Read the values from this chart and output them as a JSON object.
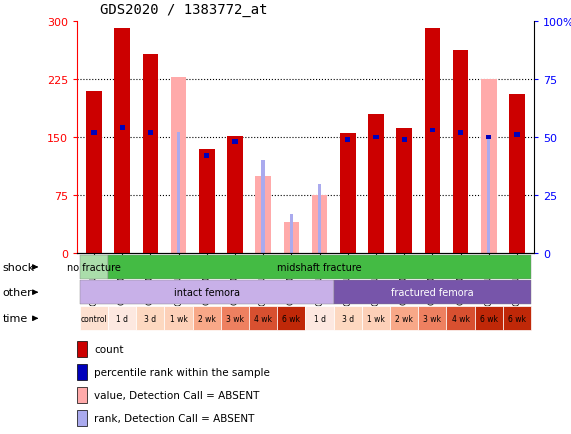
{
  "title": "GDS2020 / 1383772_at",
  "samples": [
    "GSM74213",
    "GSM74214",
    "GSM74215",
    "GSM74217",
    "GSM74219",
    "GSM74221",
    "GSM74223",
    "GSM74225",
    "GSM74227",
    "GSM74216",
    "GSM74218",
    "GSM74220",
    "GSM74222",
    "GSM74224",
    "GSM74226",
    "GSM74228"
  ],
  "count_values": [
    210,
    291,
    257,
    0,
    135,
    152,
    0,
    0,
    0,
    155,
    180,
    162,
    291,
    262,
    0,
    205
  ],
  "rank_pct": [
    52,
    54,
    52,
    0,
    42,
    48,
    0,
    0,
    0,
    49,
    50,
    49,
    53,
    52,
    50,
    51
  ],
  "absent_count_values": [
    0,
    0,
    0,
    228,
    0,
    0,
    100,
    40,
    75,
    0,
    0,
    0,
    0,
    0,
    225,
    0
  ],
  "absent_rank_pct": [
    0,
    0,
    0,
    52,
    0,
    0,
    40,
    17,
    30,
    0,
    0,
    0,
    0,
    0,
    51,
    0
  ],
  "ylim": [
    0,
    300
  ],
  "yticks_left": [
    0,
    75,
    150,
    225,
    300
  ],
  "yticks_right": [
    0,
    25,
    50,
    75,
    100
  ],
  "color_count": "#cc0000",
  "color_rank": "#0000bb",
  "color_absent_count": "#ffaaaa",
  "color_absent_rank": "#aaaaee",
  "shock_nf_color": "#aaddaa",
  "shock_mf_color": "#44bb44",
  "other_if_color": "#c8b0e8",
  "other_ff_color": "#7755aa",
  "time_labels": [
    "control",
    "1 d",
    "3 d",
    "1 wk",
    "2 wk",
    "3 wk",
    "4 wk",
    "6 wk",
    "1 d",
    "3 d",
    "1 wk",
    "2 wk",
    "3 wk",
    "4 wk",
    "6 wk",
    "6 wk"
  ],
  "time_colors": [
    "#fde0d0",
    "#fde8e0",
    "#fdd8c0",
    "#fdd0b8",
    "#f8a888",
    "#ee8060",
    "#d85030",
    "#c02808",
    "#fde8e0",
    "#fdd8c0",
    "#fdd0b8",
    "#f8a888",
    "#ee8060",
    "#d85030",
    "#c02808",
    "#c02808"
  ]
}
